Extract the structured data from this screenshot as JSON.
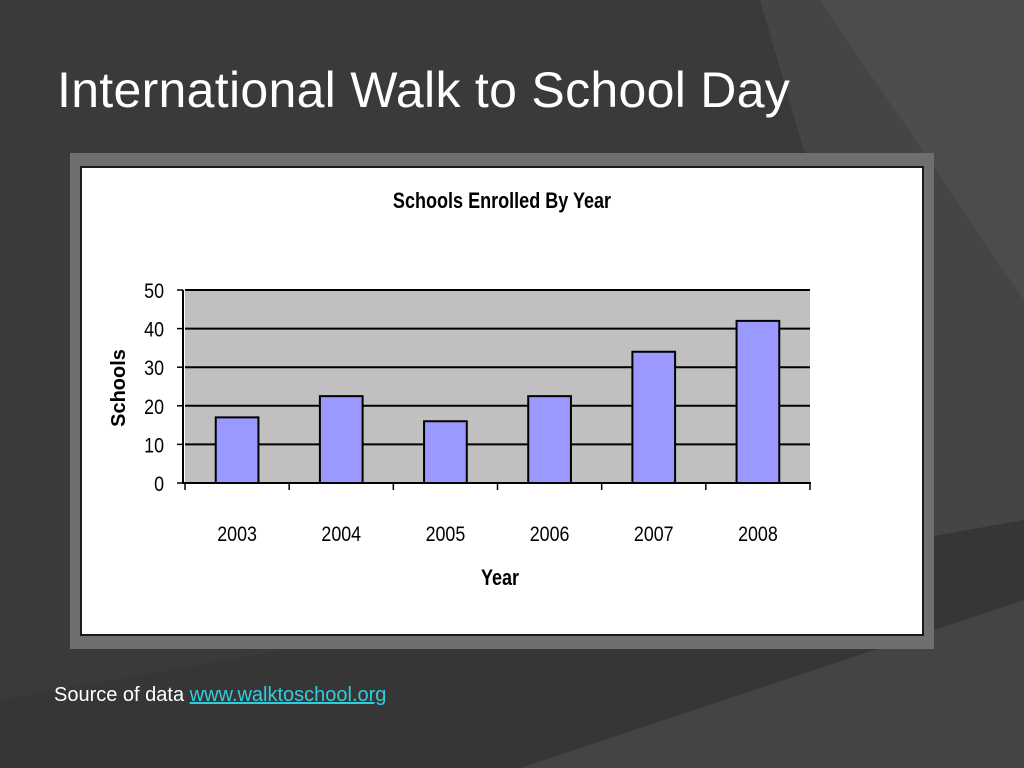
{
  "slide": {
    "title": "International Walk to School Day",
    "source_label": "Source of data",
    "source_link": "www.walktoschool.org"
  },
  "colors": {
    "background": "#3a3a3a",
    "bar_fill": "#9999ff",
    "plot_area": "#c0c0c0",
    "link": "#33ccdd"
  },
  "chart_data": {
    "type": "bar",
    "title": "Schools Enrolled By Year",
    "xlabel": "Year",
    "ylabel": "Schools",
    "categories": [
      "2003",
      "2004",
      "2005",
      "2006",
      "2007",
      "2008"
    ],
    "values": [
      17,
      22.5,
      16,
      22.5,
      34,
      42
    ],
    "ylim": [
      0,
      50
    ],
    "yticks": [
      "0",
      "10",
      "20",
      "30",
      "40",
      "50"
    ],
    "grid": true,
    "legend": "none"
  }
}
